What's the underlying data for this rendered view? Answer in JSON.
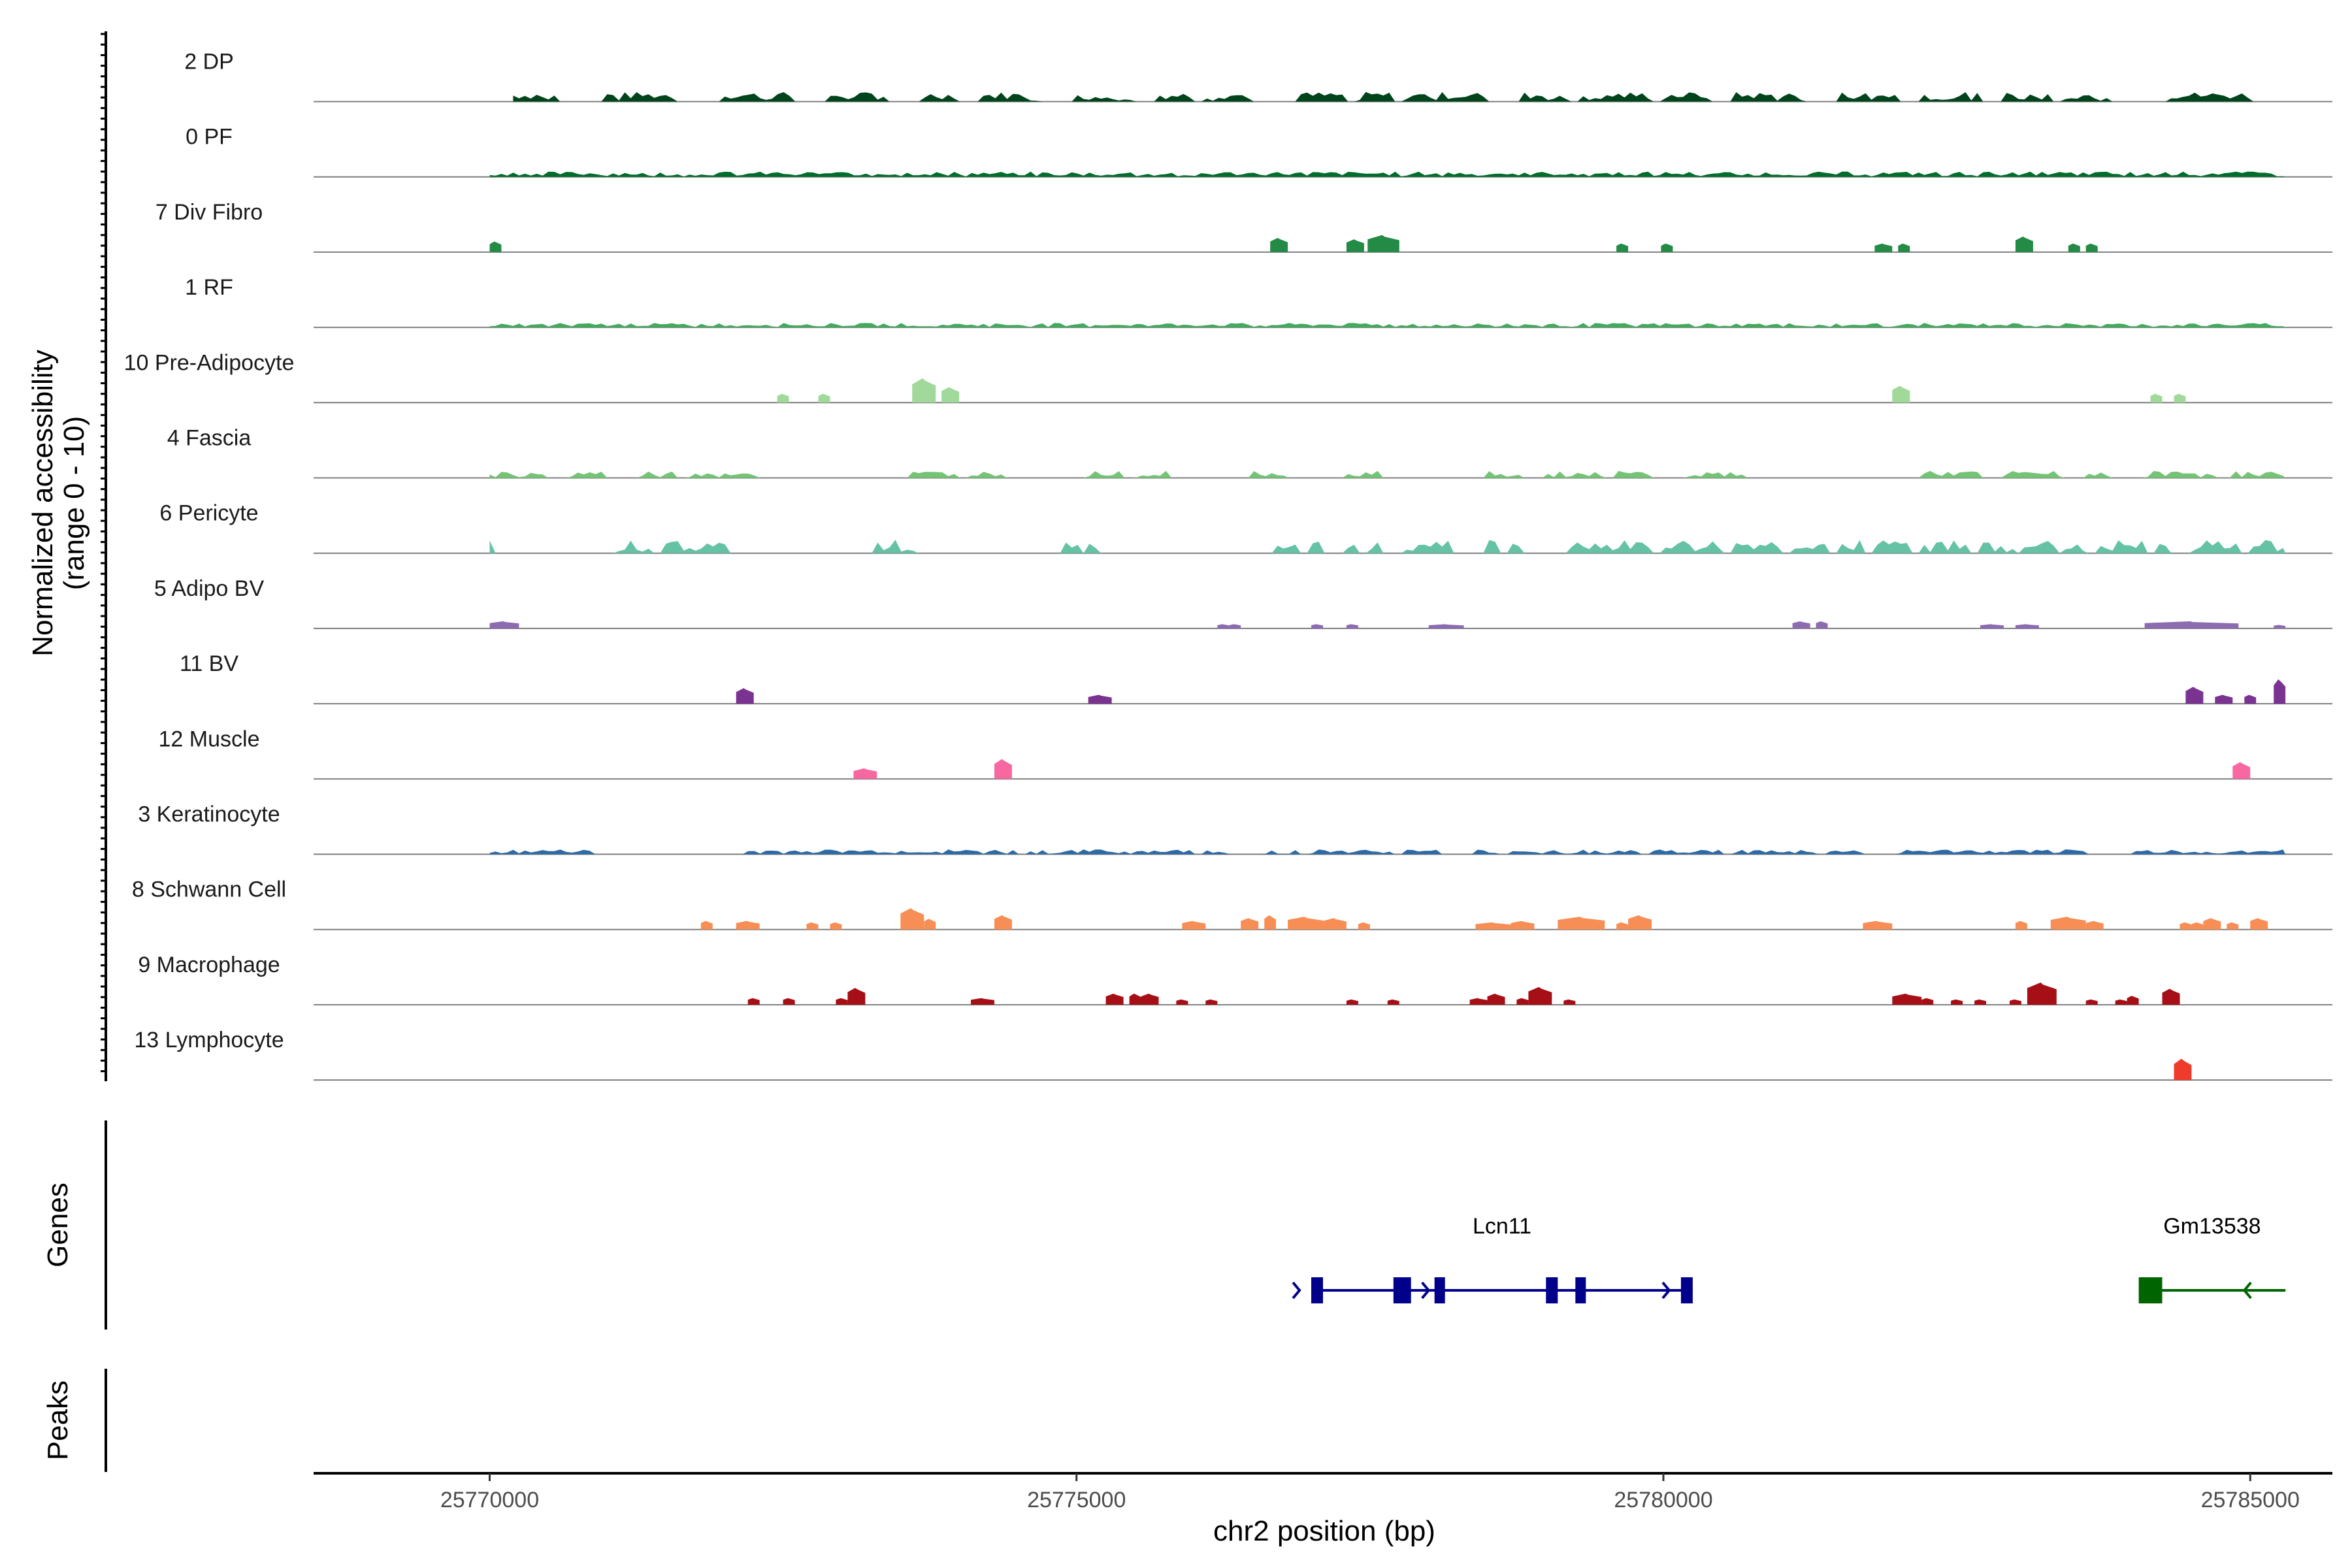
{
  "chart_data": {
    "type": "area",
    "ylabel_line1": "Normalized accessibility",
    "ylabel_line2": "(range 0 - 10)",
    "xlabel": "chr2 position (bp)",
    "xlim": [
      25768500,
      25785700
    ],
    "ylim": [
      0,
      10
    ],
    "x_ticks": [
      25770000,
      25775000,
      25780000,
      25785000
    ],
    "x_tick_labels": [
      "25770000",
      "25775000",
      "25780000",
      "25785000"
    ],
    "grid": false,
    "panel_labels": {
      "genes": "Genes",
      "peaks": "Peaks"
    },
    "series": [
      {
        "name": "2 DP",
        "color": "#00441b",
        "style": "dense",
        "peak": 2.2,
        "start": 25770200,
        "end": 25785250,
        "regions": [
          [
            25770200,
            25770600
          ],
          [
            25771000,
            25771600
          ],
          [
            25772000,
            25772600
          ],
          [
            25772900,
            25773400
          ],
          [
            25773700,
            25774000
          ],
          [
            25774200,
            25774700
          ],
          [
            25775000,
            25775500
          ],
          [
            25775700,
            25776000
          ],
          [
            25776100,
            25776500
          ],
          [
            25776900,
            25777300
          ],
          [
            25777400,
            25777700
          ],
          [
            25777800,
            25778500
          ],
          [
            25778800,
            25779200
          ],
          [
            25779300,
            25779900
          ],
          [
            25780000,
            25780400
          ],
          [
            25780600,
            25781200
          ],
          [
            25781500,
            25782000
          ],
          [
            25782200,
            25782700
          ],
          [
            25782900,
            25783300
          ],
          [
            25783400,
            25783800
          ],
          [
            25784300,
            25785000
          ]
        ]
      },
      {
        "name": "0 PF",
        "color": "#006d2c",
        "style": "dense",
        "peak": 1.2,
        "start": 25770000,
        "end": 25785300,
        "regions": [
          [
            25770000,
            25785300
          ]
        ]
      },
      {
        "name": "7 Div Fibro",
        "color": "#238b45",
        "style": "blocks",
        "peak": 4.0,
        "start": 25770000,
        "end": 25785300,
        "regions": [
          [
            25770000,
            25770100,
            1.5
          ],
          [
            25776650,
            25776800,
            2.0
          ],
          [
            25777300,
            25777450,
            1.8
          ],
          [
            25777480,
            25777750,
            2.4
          ],
          [
            25779600,
            25779700,
            1.2
          ],
          [
            25779980,
            25780080,
            1.2
          ],
          [
            25781800,
            25781950,
            1.2
          ],
          [
            25782000,
            25782100,
            1.2
          ],
          [
            25783000,
            25783150,
            2.2
          ],
          [
            25783450,
            25783550,
            1.2
          ],
          [
            25783600,
            25783700,
            1.2
          ]
        ]
      },
      {
        "name": "1 RF",
        "color": "#41ab5d",
        "style": "dense",
        "peak": 1.0,
        "start": 25770000,
        "end": 25785300,
        "regions": [
          [
            25770000,
            25785300
          ]
        ]
      },
      {
        "name": "10 Pre-Adipocyte",
        "color": "#a1d99b",
        "style": "blocks",
        "peak": 6.0,
        "start": 25770000,
        "end": 25785300,
        "regions": [
          [
            25772450,
            25772550,
            2.0
          ],
          [
            25772800,
            25772900,
            2.0
          ],
          [
            25773600,
            25773800,
            5.5
          ],
          [
            25773850,
            25774000,
            3.5
          ],
          [
            25781950,
            25782100,
            3.8
          ],
          [
            25784150,
            25784250,
            2.0
          ],
          [
            25784350,
            25784450,
            2.0
          ]
        ]
      },
      {
        "name": "4 Fascia",
        "color": "#74c476",
        "style": "dense",
        "peak": 1.6,
        "start": 25770000,
        "end": 25785300,
        "regions": [
          [
            25770000,
            25770500
          ],
          [
            25770700,
            25771000
          ],
          [
            25771300,
            25771600
          ],
          [
            25771700,
            25772100
          ],
          [
            25772100,
            25772300
          ],
          [
            25773600,
            25774000
          ],
          [
            25774100,
            25774400
          ],
          [
            25775100,
            25775400
          ],
          [
            25775500,
            25775800
          ],
          [
            25776500,
            25776800
          ],
          [
            25777300,
            25777600
          ],
          [
            25778500,
            25778800
          ],
          [
            25779000,
            25779500
          ],
          [
            25779600,
            25779900
          ],
          [
            25780200,
            25780700
          ],
          [
            25782200,
            25782700
          ],
          [
            25782900,
            25783400
          ],
          [
            25783600,
            25783800
          ],
          [
            25784100,
            25784700
          ],
          [
            25784800,
            25785300
          ]
        ]
      },
      {
        "name": "6 Pericyte",
        "color": "#66c2a4",
        "style": "dense",
        "peak": 3.0,
        "start": 25770000,
        "end": 25785300,
        "regions": [
          [
            25770000,
            25770050
          ],
          [
            25771100,
            25771400
          ],
          [
            25771500,
            25771800
          ],
          [
            25771800,
            25772050
          ],
          [
            25773300,
            25773650
          ],
          [
            25774900,
            25775050
          ],
          [
            25775100,
            25775200
          ],
          [
            25776700,
            25776900
          ],
          [
            25777000,
            25777100
          ],
          [
            25777300,
            25777400
          ],
          [
            25777500,
            25777600
          ],
          [
            25777800,
            25778000
          ],
          [
            25778000,
            25778200
          ],
          [
            25778500,
            25778600
          ],
          [
            25778700,
            25778800
          ],
          [
            25779200,
            25779900
          ],
          [
            25780000,
            25780500
          ],
          [
            25780600,
            25781000
          ],
          [
            25781100,
            25781400
          ],
          [
            25781500,
            25781700
          ],
          [
            25781800,
            25782100
          ],
          [
            25782200,
            25782600
          ],
          [
            25782700,
            25783000
          ],
          [
            25783050,
            25783350
          ],
          [
            25783400,
            25783600
          ],
          [
            25783700,
            25784100
          ],
          [
            25784200,
            25784300
          ],
          [
            25784500,
            25784700
          ],
          [
            25784700,
            25784900
          ],
          [
            25785000,
            25785300
          ]
        ]
      },
      {
        "name": "5 Adipo BV",
        "color": "#8c6bb1",
        "style": "blocks",
        "peak": 1.2,
        "start": 25770000,
        "end": 25785300,
        "regions": [
          [
            25770000,
            25770250,
            1.0
          ],
          [
            25776200,
            25776300,
            0.6
          ],
          [
            25776300,
            25776400,
            0.6
          ],
          [
            25777000,
            25777100,
            0.6
          ],
          [
            25777300,
            25777400,
            0.6
          ],
          [
            25778000,
            25778300,
            0.6
          ],
          [
            25781100,
            25781250,
            1.0
          ],
          [
            25781300,
            25781400,
            1.0
          ],
          [
            25782700,
            25782900,
            0.6
          ],
          [
            25783000,
            25783200,
            0.6
          ],
          [
            25784100,
            25784900,
            1.0
          ],
          [
            25785200,
            25785300,
            0.5
          ]
        ]
      },
      {
        "name": "11 BV",
        "color": "#7a3391",
        "style": "blocks",
        "peak": 6.0,
        "start": 25770000,
        "end": 25785300,
        "regions": [
          [
            25772100,
            25772250,
            3.5
          ],
          [
            25775100,
            25775300,
            2.0
          ],
          [
            25784450,
            25784600,
            3.8
          ],
          [
            25784700,
            25784850,
            2.0
          ],
          [
            25784950,
            25785050,
            2.0
          ],
          [
            25785200,
            25785300,
            5.5
          ]
        ]
      },
      {
        "name": "12 Muscle",
        "color": "#f768a1",
        "style": "blocks",
        "peak": 5.0,
        "start": 25770000,
        "end": 25785300,
        "regions": [
          [
            25773100,
            25773300,
            2.4
          ],
          [
            25774300,
            25774450,
            4.5
          ],
          [
            25784850,
            25785000,
            3.8
          ]
        ]
      },
      {
        "name": "3 Keratinocyte",
        "color": "#2c6aa6",
        "style": "dense",
        "peak": 1.1,
        "start": 25770000,
        "end": 25785300,
        "regions": [
          [
            25770000,
            25770900
          ],
          [
            25772200,
            25774500
          ],
          [
            25774600,
            25776000
          ],
          [
            25776100,
            25776300
          ],
          [
            25776600,
            25776900
          ],
          [
            25777000,
            25777700
          ],
          [
            25777800,
            25778100
          ],
          [
            25778400,
            25778600
          ],
          [
            25778700,
            25779800
          ],
          [
            25779900,
            25780500
          ],
          [
            25780600,
            25781300
          ],
          [
            25781400,
            25781700
          ],
          [
            25782000,
            25783600
          ],
          [
            25784000,
            25785300
          ]
        ]
      },
      {
        "name": "8 Schwann Cell",
        "color": "#f68e55",
        "style": "blocks",
        "peak": 4.0,
        "start": 25770000,
        "end": 25785300,
        "regions": [
          [
            25771800,
            25771900,
            1.2
          ],
          [
            25772100,
            25772300,
            1.2
          ],
          [
            25772700,
            25772800,
            1.0
          ],
          [
            25772900,
            25773000,
            1.0
          ],
          [
            25773500,
            25773700,
            3.0
          ],
          [
            25773700,
            25773800,
            1.5
          ],
          [
            25774300,
            25774450,
            2.0
          ],
          [
            25775900,
            25776100,
            1.2
          ],
          [
            25776400,
            25776550,
            1.6
          ],
          [
            25776600,
            25776700,
            2.0
          ],
          [
            25776800,
            25777100,
            1.8
          ],
          [
            25777100,
            25777300,
            1.6
          ],
          [
            25777400,
            25777500,
            1.0
          ],
          [
            25778400,
            25778700,
            1.0
          ],
          [
            25778700,
            25778900,
            1.2
          ],
          [
            25779100,
            25779500,
            1.8
          ],
          [
            25779600,
            25779700,
            1.0
          ],
          [
            25779700,
            25779900,
            2.0
          ],
          [
            25781700,
            25781950,
            1.2
          ],
          [
            25783000,
            25783100,
            1.2
          ],
          [
            25783300,
            25783600,
            1.8
          ],
          [
            25783600,
            25783750,
            1.2
          ],
          [
            25784400,
            25784500,
            1.0
          ],
          [
            25784500,
            25784600,
            1.0
          ],
          [
            25784600,
            25784750,
            1.6
          ],
          [
            25784800,
            25784900,
            1.0
          ],
          [
            25785000,
            25785150,
            1.6
          ]
        ]
      },
      {
        "name": "9 Macrophage",
        "color": "#a50f15",
        "style": "blocks",
        "peak": 6.0,
        "start": 25770000,
        "end": 25785300,
        "regions": [
          [
            25772200,
            25772300,
            1.5
          ],
          [
            25772500,
            25772600,
            1.5
          ],
          [
            25772950,
            25773050,
            1.5
          ],
          [
            25773050,
            25773200,
            3.8
          ],
          [
            25774100,
            25774300,
            1.5
          ],
          [
            25775250,
            25775400,
            2.5
          ],
          [
            25775450,
            25775550,
            2.5
          ],
          [
            25775550,
            25775700,
            2.5
          ],
          [
            25775850,
            25775950,
            1.2
          ],
          [
            25776100,
            25776200,
            1.2
          ],
          [
            25777300,
            25777400,
            1.2
          ],
          [
            25777650,
            25777750,
            1.2
          ],
          [
            25778350,
            25778500,
            1.5
          ],
          [
            25778500,
            25778650,
            2.5
          ],
          [
            25778750,
            25778850,
            1.5
          ],
          [
            25778850,
            25779050,
            4.0
          ],
          [
            25779150,
            25779250,
            1.2
          ],
          [
            25781950,
            25782200,
            2.5
          ],
          [
            25782200,
            25782300,
            1.5
          ],
          [
            25782450,
            25782550,
            1.2
          ],
          [
            25782650,
            25782750,
            1.2
          ],
          [
            25782950,
            25783050,
            1.2
          ],
          [
            25783100,
            25783350,
            5.0
          ],
          [
            25783600,
            25783700,
            1.2
          ],
          [
            25783850,
            25783950,
            1.2
          ],
          [
            25783950,
            25784050,
            2.0
          ],
          [
            25784250,
            25784400,
            3.6
          ]
        ]
      },
      {
        "name": "13 Lymphocyte",
        "color": "#ef3b2c",
        "style": "blocks",
        "peak": 5.0,
        "start": 25770000,
        "end": 25785300,
        "regions": [
          [
            25784350,
            25784500,
            4.8
          ]
        ]
      }
    ],
    "genes": [
      {
        "name": "Lcn11",
        "color": "#00008b",
        "start": 25777000,
        "end": 25780250,
        "strand": "+",
        "exons": [
          [
            25777000,
            25777100
          ],
          [
            25777700,
            25777850
          ],
          [
            25778050,
            25778120
          ],
          [
            25779000,
            25779100
          ],
          [
            25779250,
            25779330
          ],
          [
            25780150,
            25780250
          ]
        ]
      },
      {
        "name": "Gm13538",
        "color": "#006400",
        "start": 25784050,
        "end": 25785300,
        "strand": "-",
        "exons": [
          [
            25784050,
            25784250
          ]
        ]
      }
    ],
    "peaks": []
  }
}
